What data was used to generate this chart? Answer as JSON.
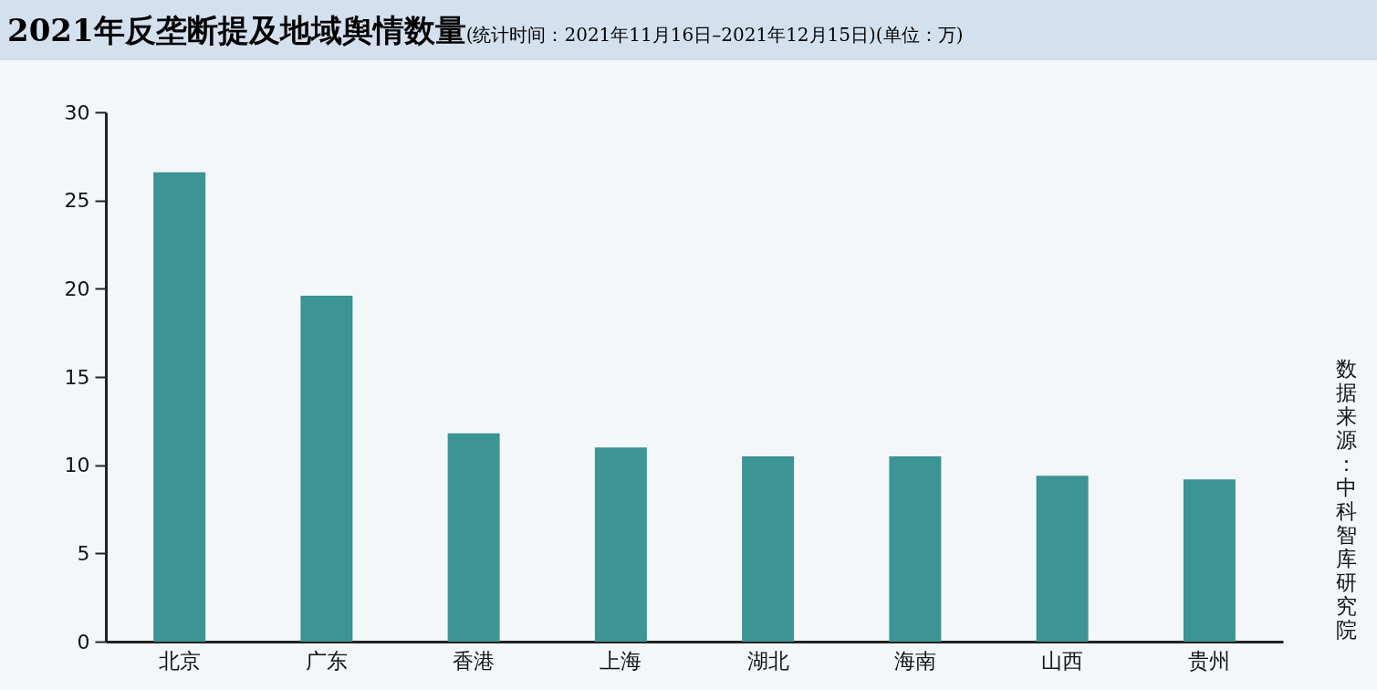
{
  "chart_data": {
    "type": "bar",
    "title": "2021年反垄断提及地域舆情数量",
    "subtitle": "(统计时间：2021年11月16日–2021年12月15日)(单位：万)",
    "categories": [
      "北京",
      "广东",
      "香港",
      "上海",
      "湖北",
      "海南",
      "山西",
      "贵州"
    ],
    "values": [
      26.6,
      19.6,
      11.8,
      11.0,
      10.5,
      10.5,
      9.4,
      9.2
    ],
    "color": "#3d9494",
    "ylim": [
      0,
      30
    ],
    "yticks": [
      0,
      5,
      10,
      15,
      20,
      25,
      30
    ],
    "grid": false,
    "annotations": [
      "数据来源：中科智库研究院"
    ]
  }
}
